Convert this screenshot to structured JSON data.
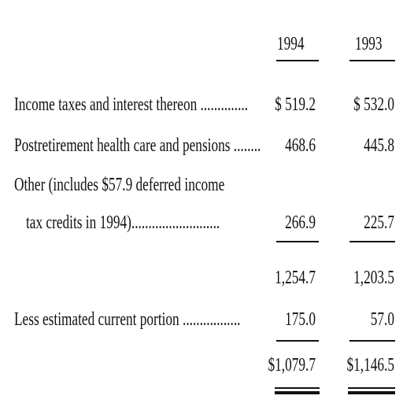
{
  "table": {
    "headers": {
      "col1": "1994",
      "col2": "1993"
    },
    "rows": [
      {
        "label": "Income taxes and interest thereon ..............",
        "col1": "$  519.2",
        "col2": "$  532.0"
      },
      {
        "label": "Postretirement health care and pensions ........",
        "col1": "468.6",
        "col2": "445.8"
      },
      {
        "label": "Other (includes $57.9 deferred income",
        "label2": "tax credits in 1994)..........................",
        "col1": "266.9",
        "col2": "225.7"
      }
    ],
    "subtotal": {
      "col1": "1,254.7",
      "col2": "1,203.5"
    },
    "less": {
      "label": "Less estimated current portion .................",
      "col1": "175.0",
      "col2": "57.0"
    },
    "total": {
      "col1": "$1,079.7",
      "col2": "$1,146.5"
    }
  }
}
